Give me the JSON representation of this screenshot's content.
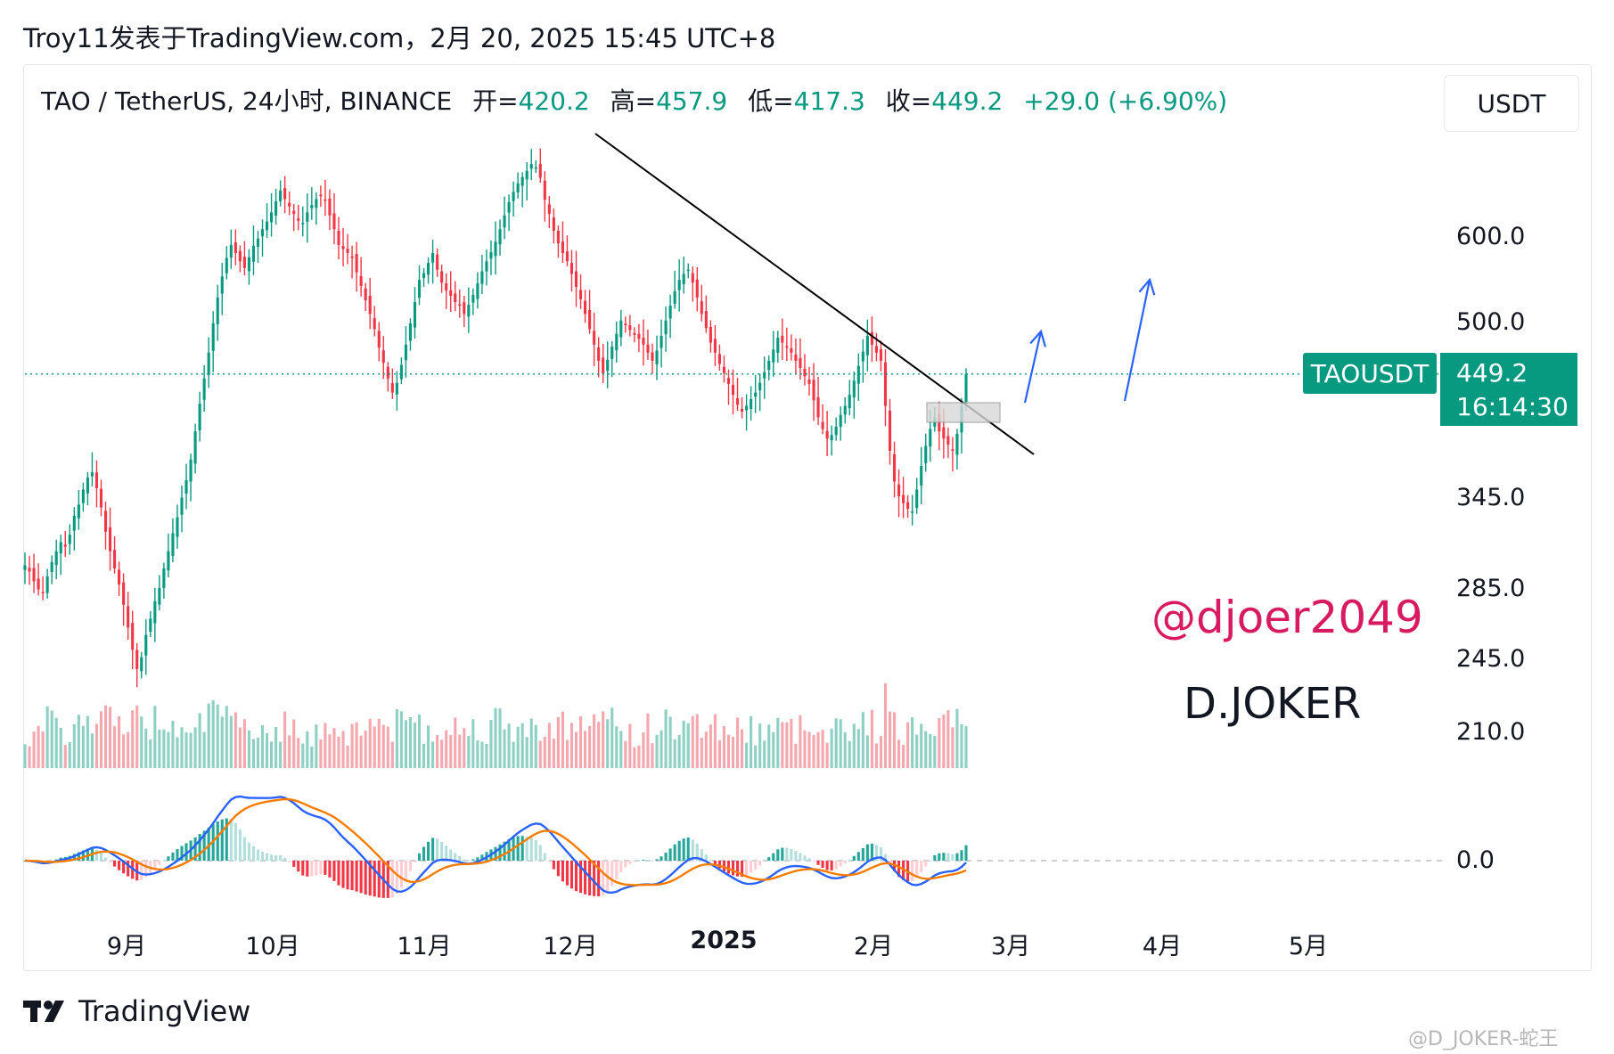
{
  "header": {
    "text": "Troy11发表于TradingView.com，2月 20, 2025 15:45 UTC+8"
  },
  "legend": {
    "symbol": "TAO / TetherUS, 24小时, BINANCE",
    "open_label": "开=",
    "open": "420.2",
    "high_label": "高=",
    "high": "457.9",
    "low_label": "低=",
    "low": "417.3",
    "close_label": "收=",
    "close": "449.2",
    "change": "+29.0 (+6.90%)"
  },
  "unit_button": "USDT",
  "symbol_tag": "TAOUSDT",
  "price_tag": {
    "price": "449.2",
    "countdown": "16:14:30"
  },
  "annotations": {
    "handle": "@djoer2049",
    "name": "D.JOKER"
  },
  "logo": {
    "text": "TradingView"
  },
  "watermark": "@D_JOKER-蛇王",
  "colors": {
    "up": "#089981",
    "down": "#f23645",
    "macd": "#2962ff",
    "signal": "#f57c00",
    "trend": "#000000",
    "arrow": "#2962ff"
  },
  "chart_data": {
    "type": "candlestick",
    "y_scale": "log",
    "y_ticks": [
      "600.0",
      "500.0",
      "345.0",
      "285.0",
      "245.0",
      "210.0"
    ],
    "macd_ticks": [
      "0.0"
    ],
    "x_ticks": [
      "9月",
      "10月",
      "11月",
      "12月",
      "2025",
      "2月",
      "3月",
      "4月",
      "5月"
    ],
    "last_price": 449.2,
    "closes": [
      300,
      296,
      290,
      285,
      283,
      293,
      302,
      309,
      315,
      312,
      320,
      333,
      341,
      352,
      361,
      365,
      353,
      339,
      322,
      309,
      298,
      288,
      276,
      263,
      251,
      241,
      247,
      259,
      268,
      278,
      286,
      298,
      309,
      321,
      332,
      346,
      359,
      375,
      398,
      422,
      445,
      470,
      500,
      528,
      552,
      574,
      590,
      580,
      570,
      562,
      575,
      589,
      598,
      610,
      620,
      632,
      647,
      662,
      650,
      640,
      630,
      621,
      618,
      632,
      642,
      650,
      654,
      648,
      628,
      610,
      590,
      585,
      580,
      574,
      557,
      541,
      525,
      510,
      494,
      475,
      460,
      445,
      432,
      441,
      458,
      478,
      500,
      523,
      548,
      556,
      568,
      580,
      560,
      545,
      536,
      530,
      523,
      519,
      510,
      520,
      531,
      544,
      558,
      570,
      581,
      594,
      610,
      628,
      646,
      660,
      672,
      681,
      690,
      700,
      695,
      680,
      649,
      630,
      608,
      592,
      580,
      570,
      555,
      540,
      526,
      510,
      494,
      478,
      462,
      450,
      463,
      476,
      489,
      503,
      498,
      493,
      488,
      484,
      478,
      470,
      462,
      472,
      487,
      503,
      519,
      535,
      548,
      555,
      560,
      545,
      528,
      510,
      495,
      480,
      470,
      459,
      450,
      440,
      430,
      421,
      415,
      420,
      426,
      432,
      441,
      451,
      462,
      473,
      485,
      480,
      475,
      470,
      462,
      455,
      447,
      440,
      425,
      410,
      400,
      392,
      395,
      402,
      412,
      420,
      430,
      443,
      457,
      471,
      487,
      478,
      470,
      462,
      420,
      382,
      358,
      347,
      342,
      338,
      336,
      352,
      370,
      386,
      400,
      410,
      398,
      392,
      387,
      382,
      396,
      420,
      449.2
    ]
  }
}
